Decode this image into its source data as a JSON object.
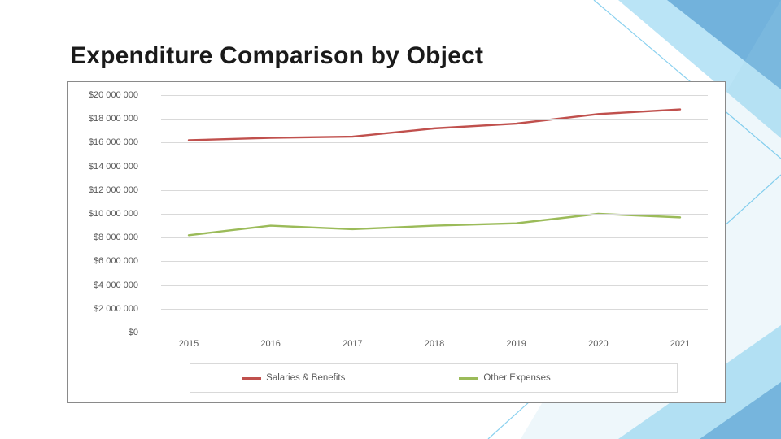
{
  "slide": {
    "title": "Expenditure Comparison by Object",
    "title_fontsize": 30,
    "title_color": "#1a1a1a",
    "background_color": "#ffffff",
    "accent_colors": [
      "#29abe2",
      "#1b75bc",
      "#a3d5e8"
    ]
  },
  "chart": {
    "type": "line",
    "border_color": "#8a8a8a",
    "grid_color": "#d9d9d9",
    "background_color": "#ffffff",
    "ylim": [
      0,
      20000000
    ],
    "ytick_step": 2000000,
    "ytick_labels": [
      "$0",
      "$2 000 000",
      "$4 000 000",
      "$6 000 000",
      "$8 000 000",
      "$10 000 000",
      "$12 000 000",
      "$14 000 000",
      "$16 000 000",
      "$18 000 000",
      "$20 000 000"
    ],
    "xlabels": [
      "2015",
      "2016",
      "2017",
      "2018",
      "2019",
      "2020",
      "2021"
    ],
    "label_fontsize": 11,
    "label_color": "#595959",
    "line_width": 2.4,
    "series": [
      {
        "name": "Salaries & Benefits",
        "color": "#c0504d",
        "values": [
          16200000,
          16400000,
          16500000,
          17200000,
          17600000,
          18400000,
          18800000
        ]
      },
      {
        "name": "Other Expenses",
        "color": "#9bbb59",
        "values": [
          8200000,
          9000000,
          8700000,
          9000000,
          9200000,
          10000000,
          9700000
        ]
      }
    ],
    "legend": {
      "position": "bottom",
      "border_color": "#d9d9d9",
      "items": [
        {
          "label": "Salaries & Benefits",
          "color": "#c0504d"
        },
        {
          "label": "Other Expenses",
          "color": "#9bbb59"
        }
      ]
    }
  }
}
